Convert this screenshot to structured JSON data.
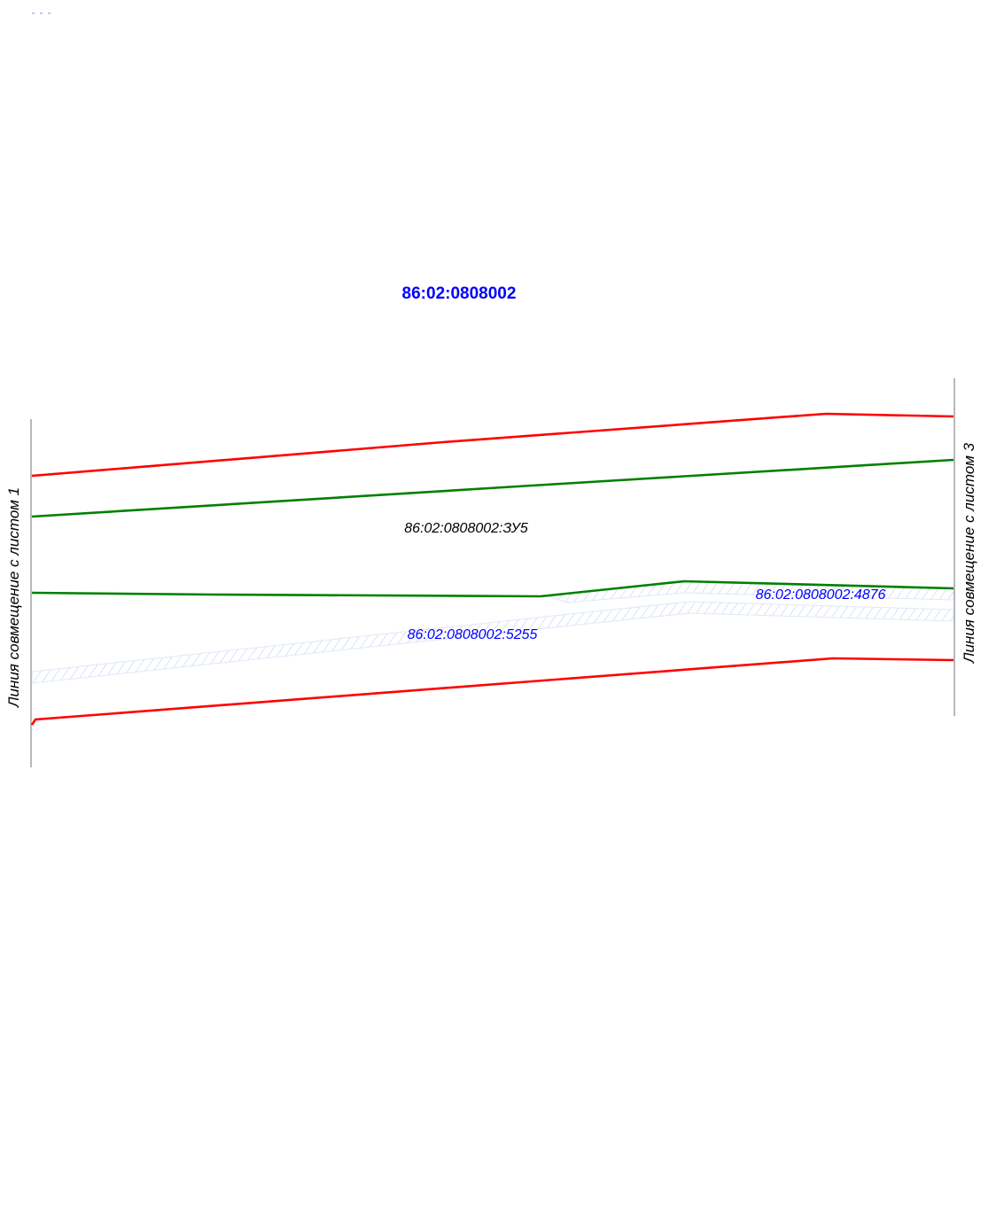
{
  "colors": {
    "boundary_red": "#ff0000",
    "parcel_green": "#008000",
    "quarter_blue": "#0000ff",
    "text_black": "#000000",
    "hatch_blue": "#c8d8f0",
    "match_line_gray": "#888888"
  },
  "map": {
    "quarter_number": "86:02:0808002",
    "parcel_zu5": "86:02:0808002:ЗУ5",
    "parcel_4876": "86:02:0808002:4876",
    "parcel_5255": "86:02:0808002:5255",
    "match_line_left": "Линия совмещение с листом 1",
    "match_line_right": "Линия совмещение с листом 3"
  }
}
